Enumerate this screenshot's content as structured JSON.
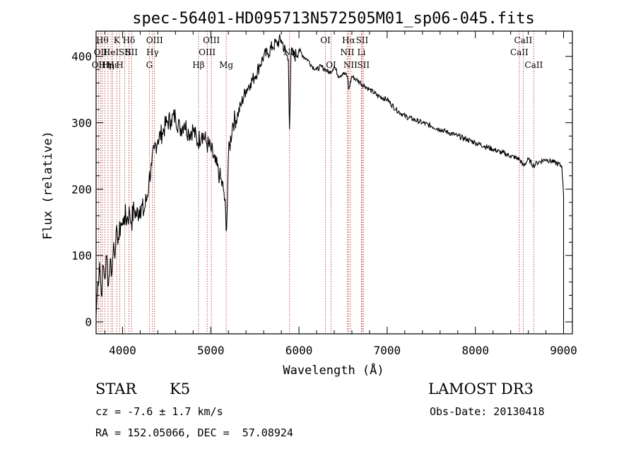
{
  "chart_data": {
    "type": "line",
    "title": "spec-56401-HD095713N572505M01_sp06-045.fits",
    "xlabel": "Wavelength (Å)",
    "ylabel": "Flux (relative)",
    "xlim": [
      3700,
      9100
    ],
    "ylim": [
      -18,
      438
    ],
    "xticks": [
      4000,
      5000,
      6000,
      7000,
      8000,
      9000
    ],
    "yticks": [
      0,
      100,
      200,
      300,
      400
    ],
    "grid": false,
    "series": [
      {
        "x": [
          3700,
          3720,
          3740,
          3760,
          3780,
          3800,
          3820,
          3840,
          3860,
          3880,
          3900,
          3920,
          3940,
          3960,
          3980,
          4000,
          4020,
          4050,
          4080,
          4100,
          4130,
          4160,
          4200,
          4240,
          4280,
          4300,
          4330,
          4360,
          4400,
          4450,
          4500,
          4550,
          4600,
          4650,
          4700,
          4750,
          4800,
          4850,
          4900,
          4950,
          5000,
          5050,
          5100,
          5150,
          5180,
          5200,
          5250,
          5300,
          5350,
          5400,
          5450,
          5500,
          5550,
          5600,
          5650,
          5700,
          5750,
          5800,
          5850,
          5880,
          5893,
          5910,
          5950,
          6000,
          6050,
          6100,
          6150,
          6200,
          6250,
          6300,
          6350,
          6400,
          6450,
          6500,
          6550,
          6563,
          6600,
          6650,
          6700,
          6750,
          6800,
          6900,
          7000,
          7100,
          7200,
          7300,
          7400,
          7500,
          7600,
          7700,
          7800,
          7900,
          8000,
          8100,
          8200,
          8300,
          8400,
          8500,
          8542,
          8600,
          8662,
          8700,
          8800,
          8900,
          8980,
          9000
        ],
        "y": [
          10,
          60,
          90,
          40,
          85,
          65,
          100,
          55,
          95,
          75,
          120,
          110,
          135,
          125,
          150,
          145,
          160,
          155,
          165,
          150,
          170,
          160,
          175,
          165,
          190,
          215,
          235,
          260,
          275,
          285,
          300,
          305,
          310,
          290,
          300,
          285,
          290,
          270,
          285,
          270,
          260,
          240,
          220,
          195,
          140,
          250,
          300,
          310,
          330,
          350,
          360,
          370,
          385,
          400,
          405,
          415,
          420,
          425,
          405,
          395,
          290,
          405,
          400,
          410,
          400,
          395,
          385,
          380,
          385,
          380,
          375,
          385,
          370,
          375,
          370,
          350,
          370,
          365,
          360,
          355,
          350,
          340,
          335,
          320,
          310,
          305,
          300,
          295,
          290,
          285,
          280,
          275,
          270,
          265,
          260,
          255,
          250,
          245,
          235,
          245,
          235,
          240,
          245,
          240,
          235,
          190
        ]
      }
    ],
    "lines": [
      {
        "x": 3727,
        "label": "OII",
        "row": 3
      },
      {
        "x": 3750,
        "label": "OII",
        "row": 2
      },
      {
        "x": 3770,
        "label": "Hθ",
        "row": 1
      },
      {
        "x": 3798,
        "label": "Hη",
        "row": 3
      },
      {
        "x": 3835,
        "label": "Hη",
        "row": 3
      },
      {
        "x": 3869,
        "label": "HeI",
        "row": 2
      },
      {
        "x": 3889,
        "label": "Hε",
        "row": 3
      },
      {
        "x": 3934,
        "label": "K",
        "row": 1
      },
      {
        "x": 3969,
        "label": "H",
        "row": 3
      },
      {
        "x": 4026,
        "label": "SII",
        "row": 2
      },
      {
        "x": 4072,
        "label": "Hδ",
        "row": 1
      },
      {
        "x": 4102,
        "label": "SII",
        "row": 2
      },
      {
        "x": 4304,
        "label": "G",
        "row": 3
      },
      {
        "x": 4340,
        "label": "Hγ",
        "row": 2
      },
      {
        "x": 4363,
        "label": "OIII",
        "row": 1
      },
      {
        "x": 4861,
        "label": "Hβ",
        "row": 3
      },
      {
        "x": 4959,
        "label": "OIII",
        "row": 2
      },
      {
        "x": 5007,
        "label": "OIII",
        "row": 1
      },
      {
        "x": 5175,
        "label": "Mg",
        "row": 3
      },
      {
        "x": 5893,
        "label": "Na",
        "row": 2
      },
      {
        "x": 6300,
        "label": "OI",
        "row": 1
      },
      {
        "x": 6364,
        "label": "OI",
        "row": 3
      },
      {
        "x": 6548,
        "label": "NII",
        "row": 2
      },
      {
        "x": 6563,
        "label": "Hα",
        "row": 1
      },
      {
        "x": 6583,
        "label": "NII",
        "row": 3
      },
      {
        "x": 6708,
        "label": "Li",
        "row": 2
      },
      {
        "x": 6716,
        "label": "SII",
        "row": 1
      },
      {
        "x": 6731,
        "label": "SII",
        "row": 3
      },
      {
        "x": 8498,
        "label": "CaII",
        "row": 2
      },
      {
        "x": 8542,
        "label": "CaII",
        "row": 1
      },
      {
        "x": 8662,
        "label": "CaII",
        "row": 3
      }
    ]
  },
  "info": {
    "class": "STAR",
    "subclass": "K5",
    "survey": "LAMOST DR3",
    "cz": "cz = -7.6 ± 1.7 km/s",
    "obs_date": "Obs-Date: 20130418",
    "radec": "RA = 152.05066, DEC =  57.08924"
  }
}
